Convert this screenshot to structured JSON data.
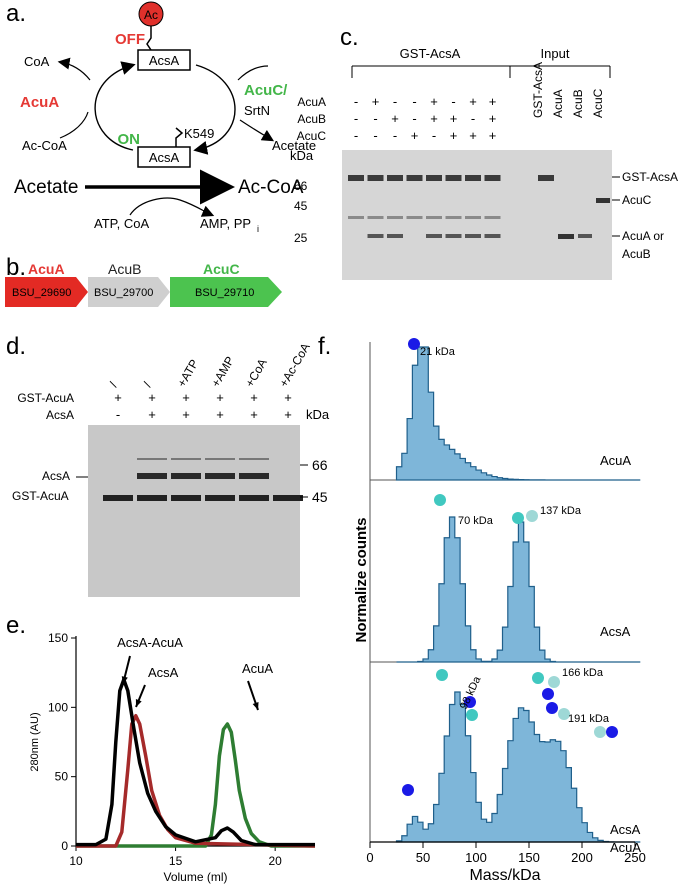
{
  "panels": {
    "a": {
      "letter": "a.",
      "ac_badge": "Ac",
      "off_label": "OFF",
      "on_label": "ON",
      "acsa_top": "AcsA",
      "acsa_bottom": "AcsA",
      "k549": "K549",
      "acua_label": "AcuA",
      "acuc_label": "AcuC/",
      "srtn_label": "SrtN",
      "coa": "CoA",
      "ac_coa_left": "Ac-CoA",
      "acetate_right": "Acetate",
      "acetate_main": "Acetate",
      "ac_coa_main": "Ac-CoA",
      "atp_coa": "ATP, CoA",
      "amp_pp": "AMP, PP",
      "amp_pp_sub": "i",
      "colors": {
        "red": "#e53935",
        "green": "#43b649",
        "ac_fill": "#e0302b"
      }
    },
    "b": {
      "letter": "b.",
      "genes": [
        {
          "name": "AcuA",
          "locus": "BSU_29690",
          "color": "#e32a24",
          "name_color": "#e53935"
        },
        {
          "name": "AcuB",
          "locus": "BSU_29700",
          "color": "#cfcfcf",
          "name_color": "#222222"
        },
        {
          "name": "AcuC",
          "locus": "BSU_29710",
          "color": "#4cc34f",
          "name_color": "#43b649"
        }
      ]
    },
    "c": {
      "letter": "c.",
      "group_gst": "GST-AcsA",
      "group_input": "Input",
      "row_labels": [
        "AcuA",
        "AcuB",
        "AcuC"
      ],
      "rows": [
        [
          "-",
          "+",
          "-",
          "-",
          "+",
          "-",
          "+",
          "+"
        ],
        [
          "-",
          "-",
          "+",
          "-",
          "+",
          "+",
          "-",
          "+"
        ],
        [
          "-",
          "-",
          "-",
          "+",
          "-",
          "+",
          "+",
          "+"
        ]
      ],
      "input_lanes": [
        "GST-AcsA",
        "AcuA",
        "AcuB",
        "AcuC"
      ],
      "kda": "kDa",
      "markers": [
        "66",
        "45",
        "25"
      ],
      "right_labels": [
        "GST-AcsA",
        "AcuC",
        "AcuA or",
        "AcuB"
      ]
    },
    "d": {
      "letter": "d.",
      "lane_headers": [
        "/",
        "/",
        "+ATP",
        "+AMP",
        "+CoA",
        "+Ac-CoA"
      ],
      "row_labels": [
        "GST-AcuA",
        "AcsA"
      ],
      "rows": [
        [
          "+",
          "+",
          "+",
          "+",
          "+",
          "+"
        ],
        [
          "-",
          "+",
          "+",
          "+",
          "+",
          "+"
        ]
      ],
      "kda": "kDa",
      "markers": [
        "66",
        "45"
      ],
      "left_labels": [
        "AcsA",
        "GST-AcuA"
      ]
    },
    "f": {
      "letter": "f.",
      "ylabel": "Normalize counts",
      "xlabel": "Mass/kDa",
      "xticks": [
        "0",
        "50",
        "100",
        "150",
        "200",
        "250"
      ],
      "subplots": [
        {
          "label": "AcuA",
          "peaks": [
            "21 kDa"
          ]
        },
        {
          "label": "AcsA",
          "peaks": [
            "70 kDa",
            "137 kDa"
          ]
        },
        {
          "label": "AcsA\nAcuA",
          "label_lines": [
            "AcsA",
            "AcuA"
          ],
          "peaks": [
            "98 kDa",
            "166 kDa",
            "191 kDa"
          ]
        }
      ]
    },
    "e": {
      "letter": "e."
    }
  },
  "chart_data": [
    {
      "type": "line",
      "title": "",
      "xlabel": "Volume (ml)",
      "ylabel": "280nm (AU)",
      "xlim": [
        10,
        22
      ],
      "ylim": [
        0,
        150
      ],
      "xticks": [
        10,
        15,
        20
      ],
      "yticks": [
        0,
        50,
        100,
        150
      ],
      "annotations": [
        "AcsA-AcuA",
        "AcsA",
        "AcuA"
      ],
      "series": [
        {
          "name": "AcsA-AcuA",
          "color": "#000000",
          "x": [
            10,
            11,
            11.5,
            11.8,
            12.0,
            12.2,
            12.4,
            12.6,
            12.9,
            13.2,
            13.6,
            14.0,
            14.5,
            15.0,
            16.0,
            17.0,
            17.3,
            17.6,
            17.9,
            18.3,
            19.0,
            22
          ],
          "y": [
            1,
            1,
            5,
            30,
            75,
            112,
            120,
            112,
            85,
            60,
            38,
            25,
            14,
            8,
            3,
            6,
            11,
            13,
            10,
            4,
            1,
            1
          ]
        },
        {
          "name": "AcsA",
          "color": "#a52a2a",
          "x": [
            10,
            12.0,
            12.3,
            12.6,
            12.8,
            13.0,
            13.2,
            13.5,
            13.8,
            14.2,
            14.6,
            15.0,
            16.0,
            22
          ],
          "y": [
            0,
            0,
            10,
            55,
            88,
            94,
            88,
            65,
            40,
            22,
            12,
            6,
            2,
            0
          ]
        },
        {
          "name": "AcuA",
          "color": "#2e7d32",
          "x": [
            10,
            16.5,
            16.8,
            17.0,
            17.2,
            17.4,
            17.6,
            17.8,
            18.0,
            18.2,
            18.5,
            18.8,
            19.2,
            19.8,
            22
          ],
          "y": [
            0,
            0,
            8,
            30,
            65,
            84,
            88,
            82,
            62,
            40,
            20,
            9,
            3,
            0,
            0
          ]
        }
      ]
    }
  ]
}
